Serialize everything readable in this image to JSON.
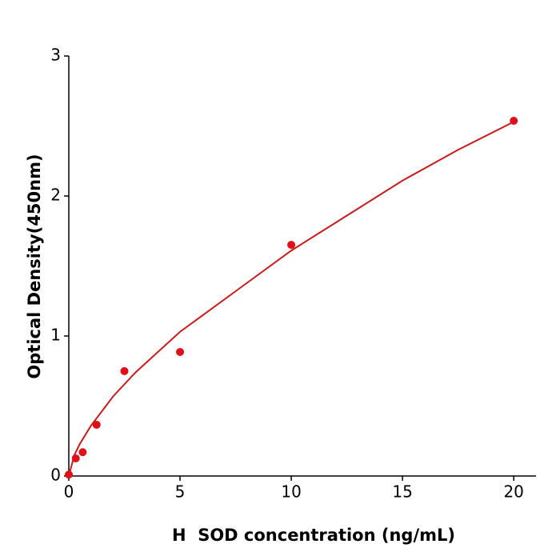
{
  "chart_data": {
    "type": "scatter",
    "x_label": "H  SOD concentration (ng/mL)",
    "y_label": "Optical Density(450nm)",
    "xlim": [
      0,
      21
    ],
    "ylim": [
      0,
      3
    ],
    "xticks": [
      0,
      5,
      10,
      15,
      20
    ],
    "yticks": [
      0,
      1,
      2,
      3
    ],
    "series": [
      {
        "type": "scatter",
        "color": "#e0101a",
        "x": [
          0,
          0.3125,
          0.625,
          1.25,
          2.5,
          5,
          10,
          20
        ],
        "values": [
          0.01,
          0.126,
          0.17,
          0.366,
          0.749,
          0.886,
          1.651,
          2.537
        ]
      },
      {
        "type": "line",
        "color": "#cc1a1a",
        "x": [
          0,
          0.25,
          0.5,
          1,
          2,
          3,
          5,
          7.5,
          10,
          12.5,
          15,
          17.5,
          20
        ],
        "values": [
          0,
          0.15,
          0.23,
          0.36,
          0.57,
          0.74,
          1.03,
          1.32,
          1.61,
          1.86,
          2.11,
          2.33,
          2.53
        ]
      }
    ]
  }
}
